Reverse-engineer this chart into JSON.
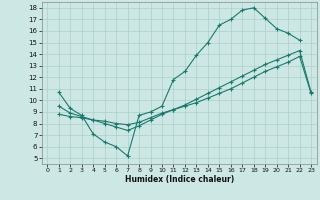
{
  "xlabel": "Humidex (Indice chaleur)",
  "background_color": "#cde8e4",
  "grid_color": "#aad0ca",
  "line_color": "#1a7a6e",
  "xlim": [
    -0.5,
    23.5
  ],
  "ylim": [
    4.5,
    18.5
  ],
  "xticks": [
    0,
    1,
    2,
    3,
    4,
    5,
    6,
    7,
    8,
    9,
    10,
    11,
    12,
    13,
    14,
    15,
    16,
    17,
    18,
    19,
    20,
    21,
    22,
    23
  ],
  "yticks": [
    5,
    6,
    7,
    8,
    9,
    10,
    11,
    12,
    13,
    14,
    15,
    16,
    17,
    18
  ],
  "line1_x": [
    1,
    2,
    3,
    4,
    5,
    6,
    7,
    8,
    9,
    10,
    11,
    12,
    13,
    14,
    15,
    16,
    17,
    18,
    19,
    20,
    21,
    22
  ],
  "line1_y": [
    10.7,
    9.3,
    8.7,
    7.1,
    6.4,
    6.0,
    5.2,
    8.7,
    9.0,
    9.5,
    11.8,
    12.5,
    13.9,
    15.0,
    16.5,
    17.0,
    17.8,
    18.0,
    17.1,
    16.2,
    15.8,
    15.2
  ],
  "line2_x": [
    1,
    2,
    3,
    4,
    5,
    6,
    7,
    8,
    9,
    10,
    11,
    12,
    13,
    14,
    15,
    16,
    17,
    18,
    19,
    20,
    21,
    22,
    23
  ],
  "line2_y": [
    9.5,
    8.9,
    8.6,
    8.3,
    8.0,
    7.7,
    7.4,
    7.8,
    8.3,
    8.8,
    9.2,
    9.6,
    10.1,
    10.6,
    11.1,
    11.6,
    12.1,
    12.6,
    13.1,
    13.5,
    13.9,
    14.3,
    10.7
  ],
  "line3_x": [
    1,
    2,
    3,
    4,
    5,
    6,
    7,
    8,
    9,
    10,
    11,
    12,
    13,
    14,
    15,
    16,
    17,
    18,
    19,
    20,
    21,
    22,
    23
  ],
  "line3_y": [
    8.8,
    8.6,
    8.5,
    8.3,
    8.2,
    8.0,
    7.9,
    8.1,
    8.5,
    8.9,
    9.2,
    9.5,
    9.8,
    10.2,
    10.6,
    11.0,
    11.5,
    12.0,
    12.5,
    12.9,
    13.3,
    13.8,
    10.6
  ]
}
